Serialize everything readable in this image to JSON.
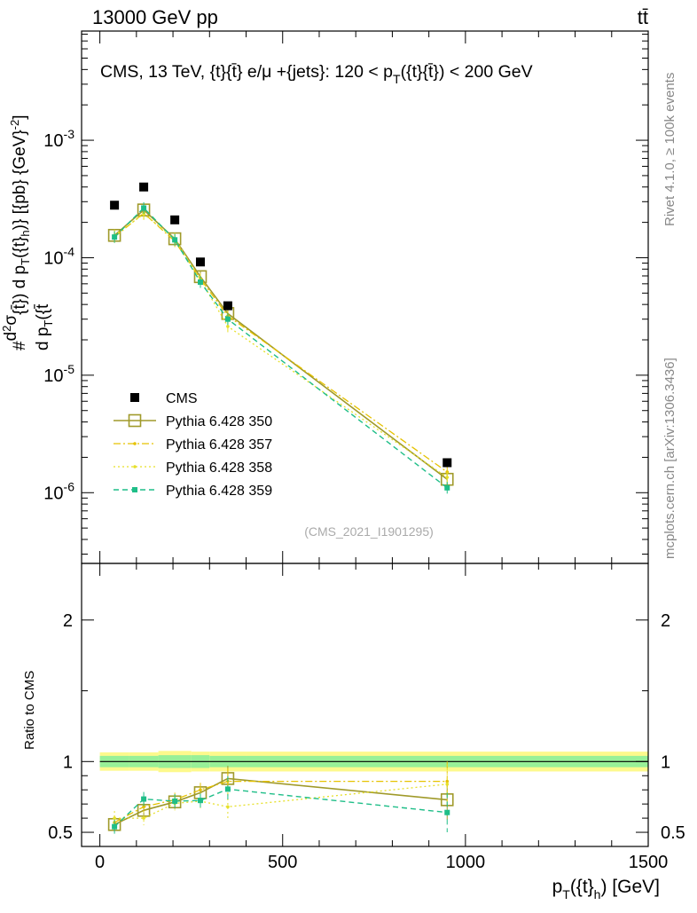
{
  "header": {
    "energy_label": "13000 GeV pp",
    "process_label": "tt̄"
  },
  "side_labels": {
    "rivet": "Rivet 4.1.0, ≥ 100k events",
    "mcplots": "mcplots.cern.ch [arXiv:1306.3436]"
  },
  "colors": {
    "cms": "#000000",
    "p350": "#a09a2a",
    "p357": "#e6c200",
    "p358": "#e6e028",
    "p359": "#1fbe88",
    "band_outer": "#fdf98c",
    "band_inner": "#98f098"
  },
  "chart_data": [
    {
      "type": "scatter",
      "name": "main",
      "title": "CMS, 13 TeV, {t}{t̄} e/μ +{jets}: 120 < p_T({t}{t̄}) < 200 GeV",
      "title_parts": {
        "main": "CMS, 13 TeV, {t}{t̄} e/μ +{jets}: 120 <  p",
        "sub": "T",
        "tail": "({t}{t̄}) < 200 GeV"
      },
      "ylabel": "#d²σ / d p_T({t̄}) d p_T({t}_h)} [{pb} {GeV}⁻²]",
      "ylabel_parts": {
        "hash": "#",
        "num": "d",
        "num_sup": "2",
        "num_sym": "σ",
        "den": "d p",
        "den_sub": "T",
        "den_tail": "({t̄",
        "rest": "{t̄}) d p",
        "rest_sub": "T",
        "rest_tail": "({t}",
        "rest_sub2": "h",
        "rest_end": ")} [{pb} {GeV}",
        "rest_sup": "-2",
        "rest_close": "]"
      },
      "yscale": "log",
      "ylim": [
        2.5e-07,
        0.0085
      ],
      "xlim": [
        -50,
        1500
      ],
      "yticks": [
        {
          "value": 1e-06,
          "base": "10",
          "exp": "-6"
        },
        {
          "value": 1e-05,
          "base": "10",
          "exp": "-5"
        },
        {
          "value": 0.0001,
          "base": "10",
          "exp": "-4"
        },
        {
          "value": 0.001,
          "base": "10",
          "exp": "-3"
        }
      ],
      "x": [
        40,
        120,
        205,
        275,
        350,
        950
      ],
      "series": [
        {
          "name": "CMS",
          "key": "cms",
          "values": [
            0.00028,
            0.0004,
            0.00021,
            9.2e-05,
            3.9e-05,
            1.8e-06
          ]
        },
        {
          "name": "Pythia 6.428 350",
          "key": "p350",
          "values": [
            0.000155,
            0.000255,
            0.000145,
            6.9e-05,
            3.35e-05,
            1.3e-06
          ]
        },
        {
          "name": "Pythia 6.428 357",
          "key": "p357",
          "values": [
            0.00015,
            0.00024,
            0.000138,
            6.6e-05,
            3.2e-05,
            1.5e-06
          ]
        },
        {
          "name": "Pythia 6.428 358",
          "key": "p358",
          "values": [
            0.000155,
            0.000235,
            0.000145,
            6.5e-05,
            2.6e-05,
            1.35e-06
          ]
        },
        {
          "name": "Pythia 6.428 359",
          "key": "p359",
          "values": [
            0.00015,
            0.000265,
            0.000142,
            6.2e-05,
            3e-05,
            1.1e-06
          ]
        }
      ],
      "legend": [
        {
          "label": "CMS",
          "key": "cms"
        },
        {
          "label": "Pythia 6.428 350",
          "key": "p350"
        },
        {
          "label": "Pythia 6.428 357",
          "key": "p357"
        },
        {
          "label": "Pythia 6.428 358",
          "key": "p358"
        },
        {
          "label": "Pythia 6.428 359",
          "key": "p359"
        }
      ],
      "legend_position": "bottom-left",
      "analysis_id": "(CMS_2021_I1901295)"
    },
    {
      "type": "line",
      "name": "ratio",
      "ylabel": "Ratio to CMS",
      "ylim": [
        0.4,
        2.4
      ],
      "yticks": [
        {
          "value": 0.5,
          "label": "0.5"
        },
        {
          "value": 1,
          "label": "1"
        },
        {
          "value": 2,
          "label": "2"
        }
      ],
      "xlabel": "p_T({t}_h) [GeV]",
      "xlabel_parts": {
        "p": "p",
        "sub": "T",
        "mid": "({t}",
        "sub2": "h",
        "end": ") [GeV]"
      },
      "xlim": [
        -50,
        1500
      ],
      "xticks": [
        {
          "value": 0,
          "label": "0"
        },
        {
          "value": 500,
          "label": "500"
        },
        {
          "value": 1000,
          "label": "1000"
        },
        {
          "value": 1500,
          "label": "1500"
        }
      ],
      "bins": [
        0,
        80,
        160,
        250,
        300,
        400,
        1500
      ],
      "band_outer": [
        0.065,
        0.065,
        0.075,
        0.07,
        0.07,
        0.07
      ],
      "band_inner": [
        0.04,
        0.04,
        0.045,
        0.045,
        0.04,
        0.04
      ],
      "x": [
        40,
        120,
        205,
        275,
        350,
        950
      ],
      "series": [
        {
          "name": "Pythia 6.428 350",
          "key": "p350",
          "values": [
            0.555,
            0.655,
            0.715,
            0.78,
            0.88,
            0.73
          ]
        },
        {
          "name": "Pythia 6.428 357",
          "key": "p357",
          "values": [
            0.57,
            0.68,
            0.73,
            0.8,
            0.86,
            0.86
          ]
        },
        {
          "name": "Pythia 6.428 358",
          "key": "p358",
          "values": [
            0.6,
            0.6,
            0.705,
            0.72,
            0.68,
            0.84
          ]
        },
        {
          "name": "Pythia 6.428 359",
          "key": "p359",
          "values": [
            0.54,
            0.735,
            0.72,
            0.725,
            0.805,
            0.64
          ]
        }
      ]
    }
  ]
}
